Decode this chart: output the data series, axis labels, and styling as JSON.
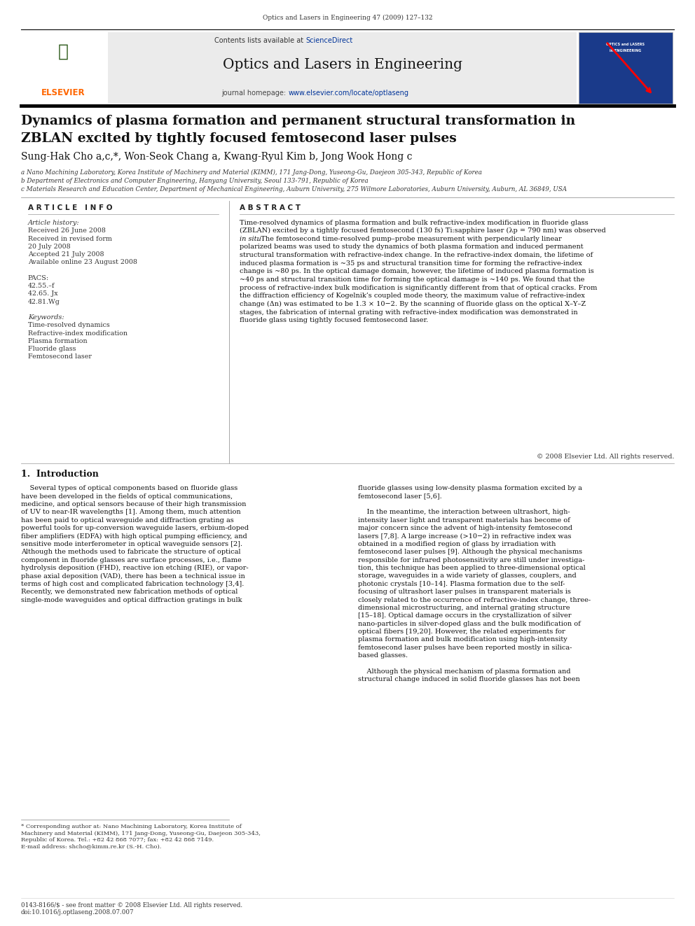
{
  "page_width": 9.92,
  "page_height": 13.23,
  "bg_color": "#ffffff",
  "header_journal_line": "Optics and Lasers in Engineering 47 (2009) 127–132",
  "journal_title": "Optics and Lasers in Engineering",
  "contents_line": "Contents lists available at",
  "sciencedirect": "ScienceDirect",
  "journal_homepage_label": "journal homepage:",
  "journal_url": "www.elsevier.com/locate/optlaseng",
  "elsevier_color": "#FF6600",
  "sciencedirect_color": "#003399",
  "url_color": "#003399",
  "paper_title_line1": "Dynamics of plasma formation and permanent structural transformation in",
  "paper_title_line2": "ZBLAN excited by tightly focused femtosecond laser pulses",
  "authors": "Sung-Hak Cho a,c,*, Won-Seok Chang a, Kwang-Ryul Kim b, Jong Wook Hong c",
  "affil_a": "a Nano Machining Laboratory, Korea Institute of Machinery and Material (KIMM), 171 Jang-Dong, Yuseong-Gu, Daejeon 305-343, Republic of Korea",
  "affil_b": "b Department of Electronics and Computer Engineering, Hanyang University, Seoul 133-791, Republic of Korea",
  "affil_c": "c Materials Research and Education Center, Department of Mechanical Engineering, Auburn University, 275 Wilmore Laboratories, Auburn University, Auburn, AL 36849, USA",
  "article_info_header": "A R T I C L E   I N F O",
  "abstract_header": "A B S T R A C T",
  "article_history_label": "Article history:",
  "received_label": "Received 26 June 2008",
  "received_revised": "Received in revised form",
  "received_revised2": "20 July 2008",
  "accepted_label": "Accepted 21 July 2008",
  "available_label": "Available online 23 August 2008",
  "pacs_label": "PACS:",
  "pacs1": "42.55.–f",
  "pacs2": "42.65. Jx",
  "pacs3": "42.81.Wg",
  "keywords_label": "Keywords:",
  "kw1": "Time-resolved dynamics",
  "kw2": "Refractive-index modification",
  "kw3": "Plasma formation",
  "kw4": "Fluoride glass",
  "kw5": "Femtosecond laser",
  "copyright_line": "© 2008 Elsevier Ltd. All rights reserved.",
  "section1_title": "1.  Introduction",
  "footnote_line1": "* Corresponding author at: Nano Machining Laboratory, Korea Institute of",
  "footnote_line2": "Machinery and Material (KIMM), 171 Jang-Dong, Yuseong-Gu, Daejeon 305-343,",
  "footnote_line3": "Republic of Korea. Tel.: +82 42 868 7077; fax: +82 42 868 7149.",
  "footnote_email_label": "E-mail address:",
  "footnote_email": "shcho@kimm.re.kr (S.-H. Cho).",
  "footer_issn": "0143-8166/$ - see front matter © 2008 Elsevier Ltd. All rights reserved.",
  "footer_doi": "doi:10.1016/j.optlaseng.2008.07.007",
  "abstract_lines": [
    "Time-resolved dynamics of plasma formation and bulk refractive-index modification in fluoride glass",
    "(ZBLAN) excited by a tightly focused femtosecond (130 fs) Ti:sapphire laser (λp = 790 nm) was observed",
    "in situ. The femtosecond time-resolved pump–probe measurement with perpendicularly linear",
    "polarized beams was used to study the dynamics of both plasma formation and induced permanent",
    "structural transformation with refractive-index change. In the refractive-index domain, the lifetime of",
    "induced plasma formation is ~35 ps and structural transition time for forming the refractive-index",
    "change is ~80 ps. In the optical damage domain, however, the lifetime of induced plasma formation is",
    "~40 ps and structural transition time for forming the optical damage is ~140 ps. We found that the",
    "process of refractive-index bulk modification is significantly different from that of optical cracks. From",
    "the diffraction efficiency of Kogelnik’s coupled mode theory, the maximum value of refractive-index",
    "change (Δn) was estimated to be 1.3 × 10−2. By the scanning of fluoride glass on the optical X–Y–Z",
    "stages, the fabrication of internal grating with refractive-index modification was demonstrated in",
    "fluoride glass using tightly focused femtosecond laser."
  ],
  "left_col_lines": [
    "    Several types of optical components based on fluoride glass",
    "have been developed in the fields of optical communications,",
    "medicine, and optical sensors because of their high transmission",
    "of UV to near-IR wavelengths [1]. Among them, much attention",
    "has been paid to optical waveguide and diffraction grating as",
    "powerful tools for up-conversion waveguide lasers, erbium-doped",
    "fiber amplifiers (EDFA) with high optical pumping efficiency, and",
    "sensitive mode interferometer in optical waveguide sensors [2].",
    "Although the methods used to fabricate the structure of optical",
    "component in fluoride glasses are surface processes, i.e., flame",
    "hydrolysis deposition (FHD), reactive ion etching (RIE), or vapor-",
    "phase axial deposition (VAD), there has been a technical issue in",
    "terms of high cost and complicated fabrication technology [3,4].",
    "Recently, we demonstrated new fabrication methods of optical",
    "single-mode waveguides and optical diffraction gratings in bulk"
  ],
  "right_col_lines": [
    "fluoride glasses using low-density plasma formation excited by a",
    "femtosecond laser [5,6].",
    "",
    "    In the meantime, the interaction between ultrashort, high-",
    "intensity laser light and transparent materials has become of",
    "major concern since the advent of high-intensity femtosecond",
    "lasers [7,8]. A large increase (>10−2) in refractive index was",
    "obtained in a modified region of glass by irradiation with",
    "femtosecond laser pulses [9]. Although the physical mechanisms",
    "responsible for infrared photosensitivity are still under investiga-",
    "tion, this technique has been applied to three-dimensional optical",
    "storage, waveguides in a wide variety of glasses, couplers, and",
    "photonic crystals [10–14]. Plasma formation due to the self-",
    "focusing of ultrashort laser pulses in transparent materials is",
    "closely related to the occurrence of refractive-index change, three-",
    "dimensional microstructuring, and internal grating structure",
    "[15–18]. Optical damage occurs in the crystallization of silver",
    "nano-particles in silver-doped glass and the bulk modification of",
    "optical fibers [19,20]. However, the related experiments for",
    "plasma formation and bulk modification using high-intensity",
    "femtosecond laser pulses have been reported mostly in silica-",
    "based glasses.",
    "",
    "    Although the physical mechanism of plasma formation and",
    "structural change induced in solid fluoride glasses has not been"
  ]
}
